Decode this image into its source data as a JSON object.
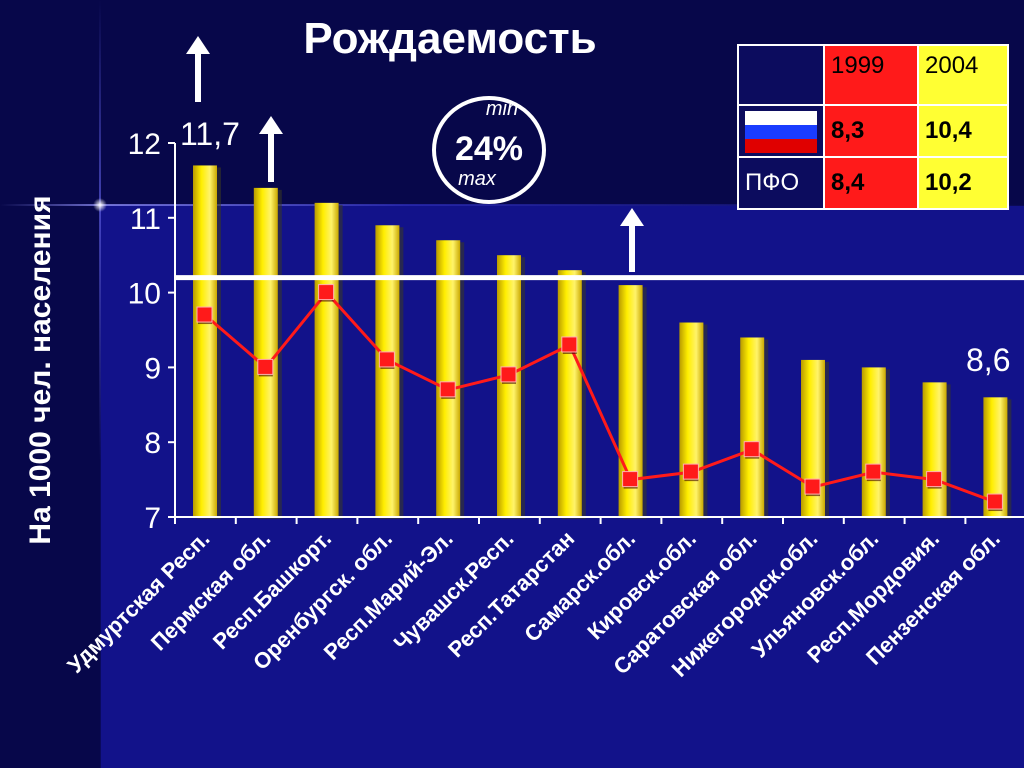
{
  "title": "Рождаемость",
  "ylabel": "На 1000 чел. населения",
  "annotations": {
    "first_value": "11,7",
    "last_value": "8,6",
    "badge_min": "min",
    "badge_pct": "24%",
    "badge_max": "max"
  },
  "table": {
    "headers": [
      "1999",
      "2004"
    ],
    "rows": [
      {
        "label": "",
        "flag": "russia-flag-icon",
        "v1999": "8,3",
        "v2004": "10,4"
      },
      {
        "label": "ПФО",
        "v1999": "8,4",
        "v2004": "10,2"
      }
    ]
  },
  "colors": {
    "bar": "#ffee00",
    "line": "#ff1a1a",
    "background": "#0c0c5e",
    "table_1999": "#ff1a1a",
    "table_2004": "#ffff33"
  },
  "chart_data": {
    "type": "bar",
    "title": "Рождаемость",
    "ylabel": "На 1000 чел. населения",
    "xlabel": "",
    "ylim": [
      7,
      12
    ],
    "yticks": [
      7,
      8,
      9,
      10,
      11,
      12
    ],
    "categories": [
      "Удмуртская Респ.",
      "Пермская обл.",
      "Респ.Башкорт.",
      "Оренбургск. обл.",
      "Респ.Марий-Эл.",
      "Чувашск.Респ.",
      "Респ.Татарстан",
      "Самарск.обл.",
      "Кировск.обл.",
      "Саратовская обл.",
      "Нижегородск.обл.",
      "Ульяновск.обл.",
      "Респ.Мордовия.",
      "Пензенская обл."
    ],
    "series": [
      {
        "type": "bar",
        "values": [
          11.7,
          11.4,
          11.2,
          10.9,
          10.7,
          10.5,
          10.3,
          10.1,
          9.6,
          9.4,
          9.1,
          9.0,
          8.8,
          8.6
        ]
      },
      {
        "type": "line",
        "values": [
          9.7,
          9.0,
          10.0,
          9.1,
          8.7,
          8.9,
          9.3,
          7.5,
          7.6,
          7.9,
          7.4,
          7.6,
          7.5,
          7.2
        ]
      }
    ],
    "reference_line": 10.2,
    "grid": false,
    "legend": "none"
  }
}
